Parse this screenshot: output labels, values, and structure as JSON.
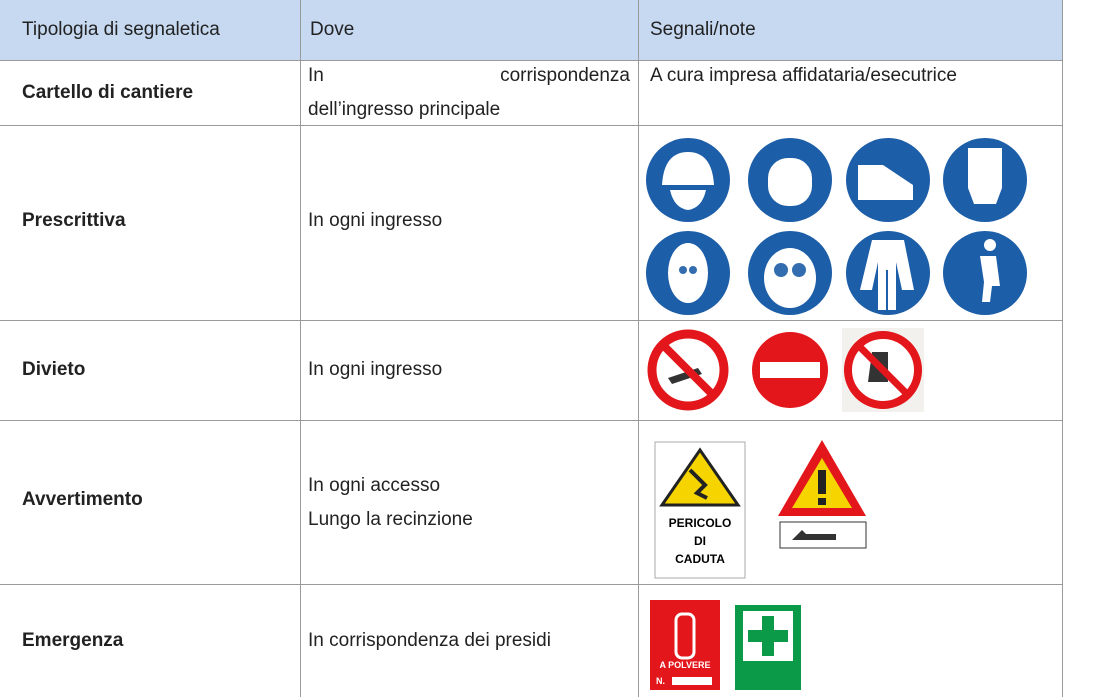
{
  "table": {
    "header": [
      "Tipologia di segnaletica",
      "Dove",
      "Segnali/note"
    ],
    "rows": [
      {
        "tipologia": "Cartello di cantiere",
        "dove": [
          "In corrispondenza",
          "dell’ingresso principale"
        ],
        "note": "A cura impresa affidataria/esecutrice"
      },
      {
        "tipologia": "Prescrittiva",
        "dove": [
          "In ogni ingresso"
        ]
      },
      {
        "tipologia": "Divieto",
        "dove": [
          "In ogni ingresso"
        ]
      },
      {
        "tipologia": "Avvertimento",
        "dove": [
          "In ogni accesso",
          "Lungo la recinzione"
        ],
        "sign_text": [
          "PERICOLO",
          "DI",
          "CADUTA"
        ]
      },
      {
        "tipologia": "Emergenza",
        "dove": [
          "In corrispondenza dei presidi"
        ],
        "sign_text": [
          "A POLVERE",
          "N."
        ]
      }
    ]
  }
}
